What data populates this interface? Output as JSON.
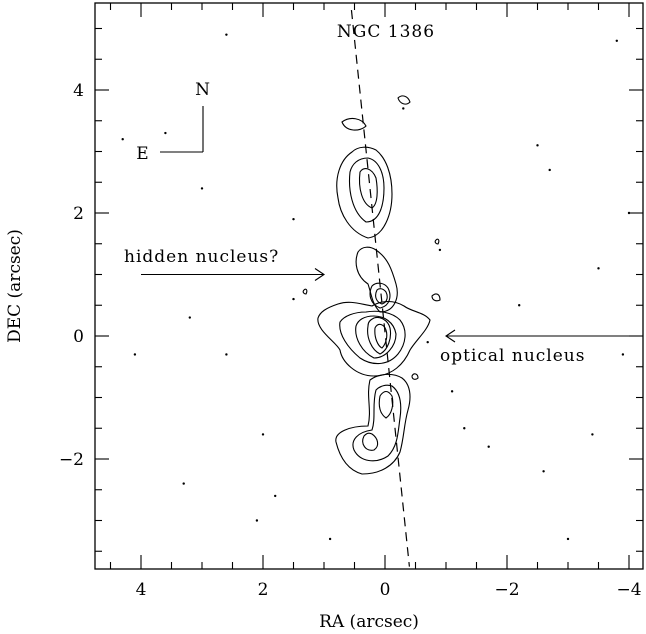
{
  "chart_data": {
    "type": "contour",
    "title": "NGC 1386",
    "xlabel": "RA (arcsec)",
    "ylabel": "DEC (arcsec)",
    "xlim": [
      4.8,
      -4.2
    ],
    "ylim": [
      -3.8,
      5.4
    ],
    "x_ticks": [
      4,
      2,
      0,
      -2,
      -4
    ],
    "x_tick_labels": [
      "4",
      "2",
      "0",
      "−2",
      "−4"
    ],
    "y_ticks": [
      4,
      2,
      0,
      -2
    ],
    "y_tick_labels": [
      "4",
      "2",
      "0",
      "−2"
    ],
    "grid": false,
    "compass": {
      "north": "N",
      "east": "E"
    },
    "annotations": [
      {
        "text": "hidden nucleus?",
        "arrow_from": [
          4.0,
          1.0
        ],
        "arrow_to": [
          1.0,
          1.0
        ]
      },
      {
        "text": "optical nucleus",
        "arrow_from": [
          -4.0,
          0.0
        ],
        "arrow_to": [
          -1.0,
          0.0
        ]
      }
    ],
    "axis_line": {
      "style": "dashed",
      "from": [
        0.55,
        5.3
      ],
      "to": [
        -0.4,
        -3.75
      ]
    },
    "emission_peaks": [
      {
        "x": 0.0,
        "y": 0.05
      },
      {
        "x": 0.05,
        "y": 0.65
      }
    ]
  }
}
